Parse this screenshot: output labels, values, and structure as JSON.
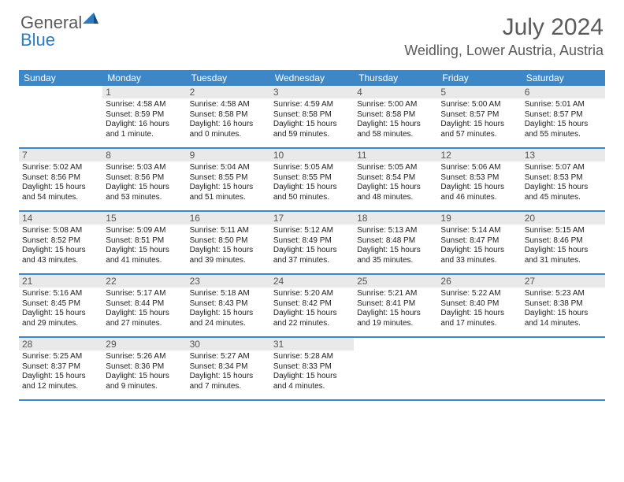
{
  "brand": {
    "part1": "General",
    "part2": "Blue"
  },
  "title": {
    "month": "July 2024",
    "location": "Weidling, Lower Austria, Austria"
  },
  "colors": {
    "accent": "#3d87c7",
    "header_text": "#5a5a5a",
    "daybar": "#e9e9e9"
  },
  "days_of_week": [
    "Sunday",
    "Monday",
    "Tuesday",
    "Wednesday",
    "Thursday",
    "Friday",
    "Saturday"
  ],
  "weeks": [
    [
      {
        "n": "",
        "lines": []
      },
      {
        "n": "1",
        "lines": [
          "Sunrise: 4:58 AM",
          "Sunset: 8:59 PM",
          "Daylight: 16 hours",
          "and 1 minute."
        ]
      },
      {
        "n": "2",
        "lines": [
          "Sunrise: 4:58 AM",
          "Sunset: 8:58 PM",
          "Daylight: 16 hours",
          "and 0 minutes."
        ]
      },
      {
        "n": "3",
        "lines": [
          "Sunrise: 4:59 AM",
          "Sunset: 8:58 PM",
          "Daylight: 15 hours",
          "and 59 minutes."
        ]
      },
      {
        "n": "4",
        "lines": [
          "Sunrise: 5:00 AM",
          "Sunset: 8:58 PM",
          "Daylight: 15 hours",
          "and 58 minutes."
        ]
      },
      {
        "n": "5",
        "lines": [
          "Sunrise: 5:00 AM",
          "Sunset: 8:57 PM",
          "Daylight: 15 hours",
          "and 57 minutes."
        ]
      },
      {
        "n": "6",
        "lines": [
          "Sunrise: 5:01 AM",
          "Sunset: 8:57 PM",
          "Daylight: 15 hours",
          "and 55 minutes."
        ]
      }
    ],
    [
      {
        "n": "7",
        "lines": [
          "Sunrise: 5:02 AM",
          "Sunset: 8:56 PM",
          "Daylight: 15 hours",
          "and 54 minutes."
        ]
      },
      {
        "n": "8",
        "lines": [
          "Sunrise: 5:03 AM",
          "Sunset: 8:56 PM",
          "Daylight: 15 hours",
          "and 53 minutes."
        ]
      },
      {
        "n": "9",
        "lines": [
          "Sunrise: 5:04 AM",
          "Sunset: 8:55 PM",
          "Daylight: 15 hours",
          "and 51 minutes."
        ]
      },
      {
        "n": "10",
        "lines": [
          "Sunrise: 5:05 AM",
          "Sunset: 8:55 PM",
          "Daylight: 15 hours",
          "and 50 minutes."
        ]
      },
      {
        "n": "11",
        "lines": [
          "Sunrise: 5:05 AM",
          "Sunset: 8:54 PM",
          "Daylight: 15 hours",
          "and 48 minutes."
        ]
      },
      {
        "n": "12",
        "lines": [
          "Sunrise: 5:06 AM",
          "Sunset: 8:53 PM",
          "Daylight: 15 hours",
          "and 46 minutes."
        ]
      },
      {
        "n": "13",
        "lines": [
          "Sunrise: 5:07 AM",
          "Sunset: 8:53 PM",
          "Daylight: 15 hours",
          "and 45 minutes."
        ]
      }
    ],
    [
      {
        "n": "14",
        "lines": [
          "Sunrise: 5:08 AM",
          "Sunset: 8:52 PM",
          "Daylight: 15 hours",
          "and 43 minutes."
        ]
      },
      {
        "n": "15",
        "lines": [
          "Sunrise: 5:09 AM",
          "Sunset: 8:51 PM",
          "Daylight: 15 hours",
          "and 41 minutes."
        ]
      },
      {
        "n": "16",
        "lines": [
          "Sunrise: 5:11 AM",
          "Sunset: 8:50 PM",
          "Daylight: 15 hours",
          "and 39 minutes."
        ]
      },
      {
        "n": "17",
        "lines": [
          "Sunrise: 5:12 AM",
          "Sunset: 8:49 PM",
          "Daylight: 15 hours",
          "and 37 minutes."
        ]
      },
      {
        "n": "18",
        "lines": [
          "Sunrise: 5:13 AM",
          "Sunset: 8:48 PM",
          "Daylight: 15 hours",
          "and 35 minutes."
        ]
      },
      {
        "n": "19",
        "lines": [
          "Sunrise: 5:14 AM",
          "Sunset: 8:47 PM",
          "Daylight: 15 hours",
          "and 33 minutes."
        ]
      },
      {
        "n": "20",
        "lines": [
          "Sunrise: 5:15 AM",
          "Sunset: 8:46 PM",
          "Daylight: 15 hours",
          "and 31 minutes."
        ]
      }
    ],
    [
      {
        "n": "21",
        "lines": [
          "Sunrise: 5:16 AM",
          "Sunset: 8:45 PM",
          "Daylight: 15 hours",
          "and 29 minutes."
        ]
      },
      {
        "n": "22",
        "lines": [
          "Sunrise: 5:17 AM",
          "Sunset: 8:44 PM",
          "Daylight: 15 hours",
          "and 27 minutes."
        ]
      },
      {
        "n": "23",
        "lines": [
          "Sunrise: 5:18 AM",
          "Sunset: 8:43 PM",
          "Daylight: 15 hours",
          "and 24 minutes."
        ]
      },
      {
        "n": "24",
        "lines": [
          "Sunrise: 5:20 AM",
          "Sunset: 8:42 PM",
          "Daylight: 15 hours",
          "and 22 minutes."
        ]
      },
      {
        "n": "25",
        "lines": [
          "Sunrise: 5:21 AM",
          "Sunset: 8:41 PM",
          "Daylight: 15 hours",
          "and 19 minutes."
        ]
      },
      {
        "n": "26",
        "lines": [
          "Sunrise: 5:22 AM",
          "Sunset: 8:40 PM",
          "Daylight: 15 hours",
          "and 17 minutes."
        ]
      },
      {
        "n": "27",
        "lines": [
          "Sunrise: 5:23 AM",
          "Sunset: 8:38 PM",
          "Daylight: 15 hours",
          "and 14 minutes."
        ]
      }
    ],
    [
      {
        "n": "28",
        "lines": [
          "Sunrise: 5:25 AM",
          "Sunset: 8:37 PM",
          "Daylight: 15 hours",
          "and 12 minutes."
        ]
      },
      {
        "n": "29",
        "lines": [
          "Sunrise: 5:26 AM",
          "Sunset: 8:36 PM",
          "Daylight: 15 hours",
          "and 9 minutes."
        ]
      },
      {
        "n": "30",
        "lines": [
          "Sunrise: 5:27 AM",
          "Sunset: 8:34 PM",
          "Daylight: 15 hours",
          "and 7 minutes."
        ]
      },
      {
        "n": "31",
        "lines": [
          "Sunrise: 5:28 AM",
          "Sunset: 8:33 PM",
          "Daylight: 15 hours",
          "and 4 minutes."
        ]
      },
      {
        "n": "",
        "lines": []
      },
      {
        "n": "",
        "lines": []
      },
      {
        "n": "",
        "lines": []
      }
    ]
  ]
}
